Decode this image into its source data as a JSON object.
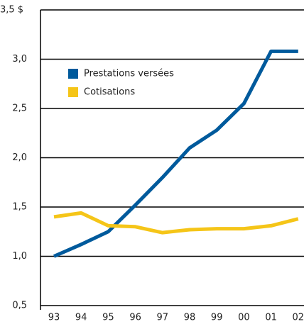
{
  "chart_data": {
    "type": "line",
    "categories": [
      "93",
      "94",
      "95",
      "96",
      "97",
      "98",
      "99",
      "00",
      "01",
      "02"
    ],
    "series": [
      {
        "name": "Prestations versées",
        "color": "#005a9c",
        "values": [
          1.0,
          1.12,
          1.25,
          1.52,
          1.8,
          2.1,
          2.28,
          2.55,
          3.08,
          3.08
        ]
      },
      {
        "name": "Cotisations",
        "color": "#f5c518",
        "values": [
          1.4,
          1.44,
          1.31,
          1.3,
          1.24,
          1.27,
          1.28,
          1.28,
          1.31,
          1.38
        ]
      }
    ],
    "ylim": [
      0.5,
      3.5
    ],
    "yticks": [
      {
        "value": 0.5,
        "label": "0,5"
      },
      {
        "value": 1.0,
        "label": "1,0"
      },
      {
        "value": 1.5,
        "label": "1,5"
      },
      {
        "value": 2.0,
        "label": "2,0"
      },
      {
        "value": 2.5,
        "label": "2,5"
      },
      {
        "value": 3.0,
        "label": "3,0"
      },
      {
        "value": 3.5,
        "label": "3,5 $"
      }
    ],
    "grid": true
  }
}
